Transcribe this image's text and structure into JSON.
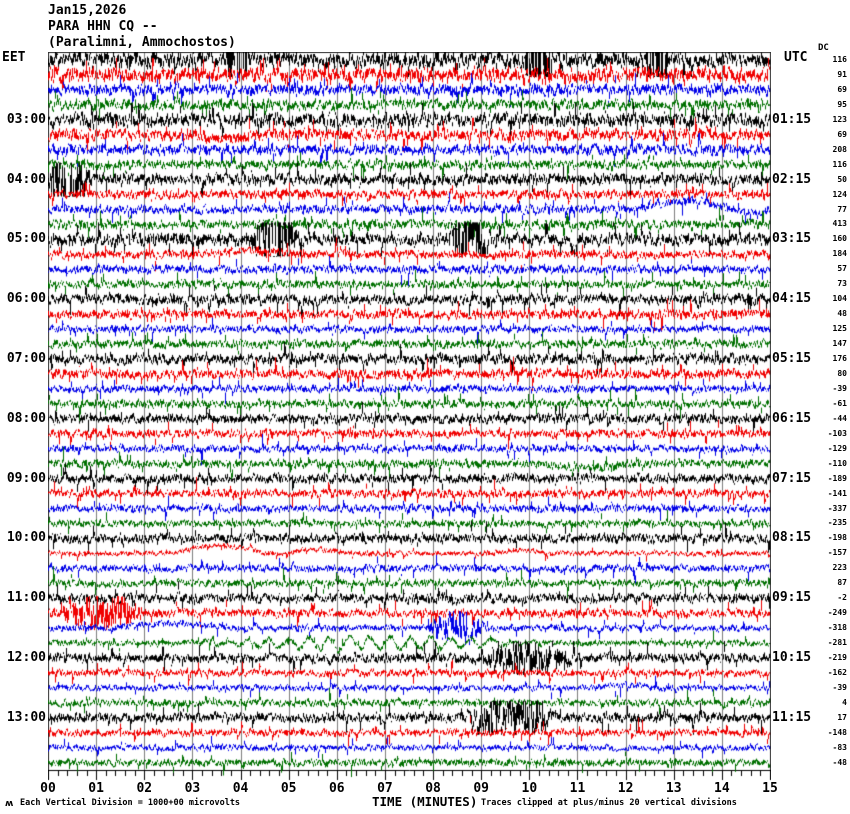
{
  "header": {
    "date": "Jan15,2026",
    "station": "PARA HHN CQ --",
    "location": "(Paralimni, Ammochostos)",
    "left_tz": "EET",
    "right_tz": "UTC",
    "dc_label": "DC"
  },
  "footer": {
    "watermark": "ʍ",
    "scale_note": "Each Vertical Division = 1000+00 microvolts",
    "xaxis_title": "TIME (MINUTES)",
    "clip_note": "Traces clipped at plus/minus 20 vertical divisions"
  },
  "chart_data": {
    "type": "line",
    "title": "PARA HHN CQ -- helicorder, Jan15,2026",
    "xlabel": "TIME (MINUTES)",
    "x_range": [
      0,
      15
    ],
    "x_tick_interval": 1,
    "x_minor_tick": 0.2,
    "x_labels": [
      "00",
      "01",
      "02",
      "03",
      "04",
      "05",
      "06",
      "07",
      "08",
      "09",
      "10",
      "11",
      "12",
      "13",
      "14",
      "15"
    ],
    "minutes_per_line": 15,
    "grid": true,
    "colors": {
      "black": "#000000",
      "red": "#f00000",
      "blue": "#0000e8",
      "green": "#007000",
      "grid": "#7d7d7d",
      "border": "#303030",
      "axis": "#000000"
    },
    "rows": [
      {
        "eet": "",
        "utc": "",
        "dc": 116,
        "color": "black",
        "amp": 7.5,
        "events": [
          {
            "type": "burst",
            "start": 3.7,
            "end": 4.2,
            "amp": 9
          },
          {
            "type": "burst",
            "start": 9.9,
            "end": 10.5,
            "amp": 9
          },
          {
            "type": "burst",
            "start": 12.4,
            "end": 12.9,
            "amp": 11
          }
        ]
      },
      {
        "eet": "",
        "utc": "",
        "dc": 91,
        "color": "red",
        "amp": 7,
        "events": []
      },
      {
        "eet": "",
        "utc": "",
        "dc": 69,
        "color": "blue",
        "amp": 5.5,
        "events": []
      },
      {
        "eet": "",
        "utc": "",
        "dc": 95,
        "color": "green",
        "amp": 5,
        "events": []
      },
      {
        "eet": "03:00",
        "utc": "01:15",
        "dc": 123,
        "color": "black",
        "amp": 6.5,
        "events": []
      },
      {
        "eet": "",
        "utc": "",
        "dc": 69,
        "color": "red",
        "amp": 5.5,
        "events": [
          {
            "type": "hump",
            "start": 2.9,
            "end": 4.3,
            "amp": -4
          }
        ]
      },
      {
        "eet": "",
        "utc": "",
        "dc": 208,
        "color": "blue",
        "amp": 5,
        "events": []
      },
      {
        "eet": "",
        "utc": "",
        "dc": 116,
        "color": "green",
        "amp": 4.5,
        "events": []
      },
      {
        "eet": "04:00",
        "utc": "02:15",
        "dc": 50,
        "color": "black",
        "amp": 5.5,
        "events": [
          {
            "type": "burst",
            "start": 0,
            "end": 0.9,
            "amp": 7
          }
        ]
      },
      {
        "eet": "",
        "utc": "",
        "dc": 124,
        "color": "red",
        "amp": 4.5,
        "events": []
      },
      {
        "eet": "",
        "utc": "",
        "dc": 77,
        "color": "blue",
        "amp": 4,
        "events": [
          {
            "type": "hump",
            "start": 12.2,
            "end": 14.3,
            "amp": 9
          },
          {
            "type": "hump",
            "start": 14.2,
            "end": 15,
            "amp": -3.5
          }
        ]
      },
      {
        "eet": "",
        "utc": "",
        "dc": 413,
        "color": "green",
        "amp": 4.5,
        "events": []
      },
      {
        "eet": "05:00",
        "utc": "03:15",
        "dc": 160,
        "color": "black",
        "amp": 6,
        "events": [
          {
            "type": "burst",
            "start": 4.2,
            "end": 5.2,
            "amp": 6
          },
          {
            "type": "burst",
            "start": 8.3,
            "end": 9.2,
            "amp": 5
          }
        ]
      },
      {
        "eet": "",
        "utc": "",
        "dc": 184,
        "color": "red",
        "amp": 4,
        "events": [
          {
            "type": "hump",
            "start": 3.2,
            "end": 5.2,
            "amp": 3.5
          }
        ]
      },
      {
        "eet": "",
        "utc": "",
        "dc": 57,
        "color": "blue",
        "amp": 4,
        "events": []
      },
      {
        "eet": "",
        "utc": "",
        "dc": 73,
        "color": "green",
        "amp": 4,
        "events": []
      },
      {
        "eet": "06:00",
        "utc": "04:15",
        "dc": 104,
        "color": "black",
        "amp": 5,
        "events": []
      },
      {
        "eet": "",
        "utc": "",
        "dc": 48,
        "color": "red",
        "amp": 4.5,
        "events": []
      },
      {
        "eet": "",
        "utc": "",
        "dc": 125,
        "color": "blue",
        "amp": 3.5,
        "events": []
      },
      {
        "eet": "",
        "utc": "",
        "dc": 147,
        "color": "green",
        "amp": 4,
        "events": []
      },
      {
        "eet": "07:00",
        "utc": "05:15",
        "dc": 176,
        "color": "black",
        "amp": 5,
        "events": []
      },
      {
        "eet": "",
        "utc": "",
        "dc": 80,
        "color": "red",
        "amp": 4.5,
        "events": []
      },
      {
        "eet": "",
        "utc": "",
        "dc": -39,
        "color": "blue",
        "amp": 3.5,
        "events": []
      },
      {
        "eet": "",
        "utc": "",
        "dc": -61,
        "color": "green",
        "amp": 4,
        "events": []
      },
      {
        "eet": "08:00",
        "utc": "06:15",
        "dc": -44,
        "color": "black",
        "amp": 4.5,
        "events": []
      },
      {
        "eet": "",
        "utc": "",
        "dc": -103,
        "color": "red",
        "amp": 4,
        "events": []
      },
      {
        "eet": "",
        "utc": "",
        "dc": -129,
        "color": "blue",
        "amp": 3.5,
        "events": []
      },
      {
        "eet": "",
        "utc": "",
        "dc": -110,
        "color": "green",
        "amp": 4,
        "events": [
          {
            "type": "hump",
            "start": 10.2,
            "end": 12.2,
            "amp": -4
          }
        ]
      },
      {
        "eet": "09:00",
        "utc": "07:15",
        "dc": -189,
        "color": "black",
        "amp": 4.5,
        "events": []
      },
      {
        "eet": "",
        "utc": "",
        "dc": -141,
        "color": "red",
        "amp": 4,
        "events": []
      },
      {
        "eet": "",
        "utc": "",
        "dc": -337,
        "color": "blue",
        "amp": 3.5,
        "events": []
      },
      {
        "eet": "",
        "utc": "",
        "dc": -235,
        "color": "green",
        "amp": 3.5,
        "events": []
      },
      {
        "eet": "10:00",
        "utc": "08:15",
        "dc": -198,
        "color": "black",
        "amp": 4.5,
        "events": []
      },
      {
        "eet": "",
        "utc": "",
        "dc": -157,
        "color": "red",
        "amp": 2.5,
        "events": [
          {
            "type": "hump",
            "start": 2.6,
            "end": 4.5,
            "amp": 8
          },
          {
            "type": "hump",
            "start": 4.9,
            "end": 6.3,
            "amp": 4
          },
          {
            "type": "hump",
            "start": 9.2,
            "end": 10.4,
            "amp": 3
          }
        ]
      },
      {
        "eet": "",
        "utc": "",
        "dc": 223,
        "color": "blue",
        "amp": 3.5,
        "events": []
      },
      {
        "eet": "",
        "utc": "",
        "dc": 87,
        "color": "green",
        "amp": 3.5,
        "events": []
      },
      {
        "eet": "11:00",
        "utc": "09:15",
        "dc": -2,
        "color": "black",
        "amp": 4.5,
        "events": []
      },
      {
        "eet": "",
        "utc": "",
        "dc": -249,
        "color": "red",
        "amp": 4,
        "events": [
          {
            "type": "burst",
            "start": 0.2,
            "end": 2.0,
            "amp": 4
          }
        ]
      },
      {
        "eet": "",
        "utc": "",
        "dc": -318,
        "color": "blue",
        "amp": 3,
        "events": [
          {
            "type": "hump",
            "start": 1.3,
            "end": 3.9,
            "amp": 4.5
          },
          {
            "type": "burst",
            "start": 7.8,
            "end": 9.2,
            "amp": 3.5
          }
        ]
      },
      {
        "eet": "",
        "utc": "",
        "dc": -281,
        "color": "green",
        "amp": 3,
        "events": [
          {
            "type": "osc",
            "start": 2.8,
            "end": 10.5,
            "amp": 6.5,
            "period": 0.42
          }
        ]
      },
      {
        "eet": "12:00",
        "utc": "10:15",
        "dc": -219,
        "color": "black",
        "amp": 4.5,
        "events": [
          {
            "type": "burst",
            "start": 9.0,
            "end": 11.0,
            "amp": 3.5
          }
        ]
      },
      {
        "eet": "",
        "utc": "",
        "dc": -162,
        "color": "red",
        "amp": 3.5,
        "events": []
      },
      {
        "eet": "",
        "utc": "",
        "dc": -39,
        "color": "blue",
        "amp": 3,
        "events": [
          {
            "type": "hump",
            "start": 11.3,
            "end": 12.6,
            "amp": 3
          }
        ]
      },
      {
        "eet": "",
        "utc": "",
        "dc": 4,
        "color": "green",
        "amp": 3.5,
        "events": []
      },
      {
        "eet": "13:00",
        "utc": "11:15",
        "dc": 17,
        "color": "black",
        "amp": 4.5,
        "events": [
          {
            "type": "burst",
            "start": 8.6,
            "end": 10.6,
            "amp": 4
          }
        ]
      },
      {
        "eet": "",
        "utc": "",
        "dc": -148,
        "color": "red",
        "amp": 3.5,
        "events": []
      },
      {
        "eet": "",
        "utc": "",
        "dc": -83,
        "color": "blue",
        "amp": 3,
        "events": []
      },
      {
        "eet": "",
        "utc": "",
        "dc": -48,
        "color": "green",
        "amp": 3.5,
        "events": []
      }
    ]
  }
}
